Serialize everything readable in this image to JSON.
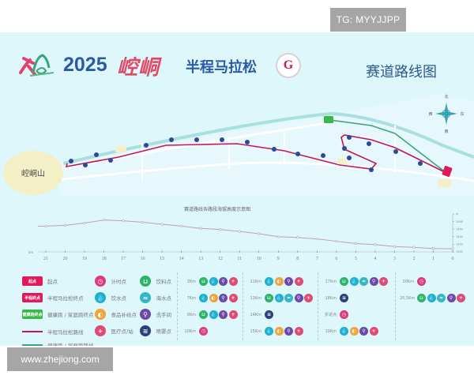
{
  "watermarks": {
    "top": "TG: MYYJJPP",
    "bottom": "www.zhejiong.com"
  },
  "header": {
    "year": "2025",
    "city": "崆峒",
    "event": "半程马拉松",
    "badge_letter": "G",
    "route_title": "赛道路线图"
  },
  "map": {
    "mountain_label": "崆峒山",
    "compass": {
      "north": "北",
      "south": "南",
      "east": "东",
      "west": "西"
    },
    "colors": {
      "half_marathon_route": "#c2185b",
      "fun_run_route": "#3aa57a",
      "river": "#9fd9d6",
      "road": "#ffffff",
      "land": "#e8f8fa",
      "mountain": "#f3f0c6",
      "checkpoint": "#2c4a9a"
    }
  },
  "elevation_chart": {
    "title": "赛道路线各路段海拔高度示意图",
    "unit_label": "km"
  },
  "chart_data": {
    "type": "line",
    "title": "赛道路线各路段海拔高度示意图",
    "xlabel": "km",
    "ylabel": "m",
    "x": [
      21,
      20,
      19,
      18,
      17,
      16,
      15,
      14,
      13,
      12,
      11,
      10,
      9,
      8,
      7,
      6,
      5,
      4,
      3,
      2,
      1,
      0
    ],
    "values": [
      1470,
      1475,
      1490,
      1510,
      1505,
      1495,
      1482,
      1470,
      1455,
      1448,
      1435,
      1420,
      1400,
      1395,
      1385,
      1370,
      1355,
      1348,
      1335,
      1330,
      1322,
      1320
    ],
    "y_ticks": [
      "1300",
      "1350",
      "1400",
      "1450",
      "1500",
      "m"
    ],
    "x_reversed": true,
    "grid": false
  },
  "legend": {
    "signs": [
      {
        "label": "起点",
        "sign_text": "起点",
        "color": "#e0195b"
      },
      {
        "label": "半程马拉松终点",
        "sign_text": "半程终点",
        "color": "#e0195b"
      },
      {
        "label": "健康跑 / 家庭跑终点",
        "sign_text": "健康跑终点",
        "color": "#3cb54a"
      }
    ],
    "lines": [
      {
        "label": "半程马拉松路线",
        "color": "#c2185b"
      },
      {
        "label": "健康跑 / 家庭跑路线",
        "color": "#3aa57a"
      }
    ],
    "symbols": [
      {
        "key": "timing",
        "label": "计时点",
        "color": "#e03a78",
        "glyph": "◷"
      },
      {
        "key": "water",
        "label": "饮水点",
        "color": "#1fb1c9",
        "glyph": "💧"
      },
      {
        "key": "food",
        "label": "食品补给点",
        "color": "#f2a23a",
        "glyph": "◐"
      },
      {
        "key": "medical",
        "label": "医疗点/站",
        "color": "#e04a74",
        "glyph": "+"
      },
      {
        "key": "drink",
        "label": "饮料点",
        "color": "#2bb46a",
        "glyph": "⊔"
      },
      {
        "key": "sponge",
        "label": "海水点",
        "color": "#35b6c6",
        "glyph": "≈"
      },
      {
        "key": "toilet",
        "label": "洗手间",
        "color": "#6a4aa6",
        "glyph": "⚲"
      },
      {
        "key": "spray",
        "label": "喷雾点",
        "color": "#2d3f7c",
        "glyph": "≋"
      }
    ],
    "supply_table": [
      {
        "km": "3Km",
        "items": [
          "drink",
          "water",
          "toilet",
          "medical"
        ]
      },
      {
        "km": "7Km",
        "items": [
          "water",
          "food",
          "toilet",
          "medical"
        ]
      },
      {
        "km": "9Km",
        "items": [
          "drink",
          "water",
          "toilet",
          "medical"
        ]
      },
      {
        "km": "10Km",
        "items": [
          "timing"
        ]
      },
      {
        "km": "11Km",
        "items": [
          "water",
          "food",
          "toilet",
          "medical"
        ]
      },
      {
        "km": "13Km",
        "items": [
          "drink",
          "water",
          "sponge",
          "toilet",
          "medical"
        ]
      },
      {
        "km": "14Km",
        "items": [
          "spray"
        ]
      },
      {
        "km": "15Km",
        "items": [
          "water",
          "food",
          "toilet",
          "medical"
        ]
      },
      {
        "km": "17Km",
        "items": [
          "drink",
          "water",
          "sponge",
          "toilet",
          "medical"
        ]
      },
      {
        "km": "18Km",
        "items": [
          "spray"
        ]
      },
      {
        "km": "折返点",
        "items": [
          "timing"
        ]
      },
      {
        "km": "19Km",
        "items": [
          "water",
          "food",
          "toilet",
          "medical"
        ]
      },
      {
        "km": "20Km",
        "items": [
          "timing"
        ]
      },
      {
        "km": "20.5Km",
        "items": [
          "drink",
          "water",
          "sponge",
          "toilet",
          "medical"
        ]
      }
    ]
  }
}
